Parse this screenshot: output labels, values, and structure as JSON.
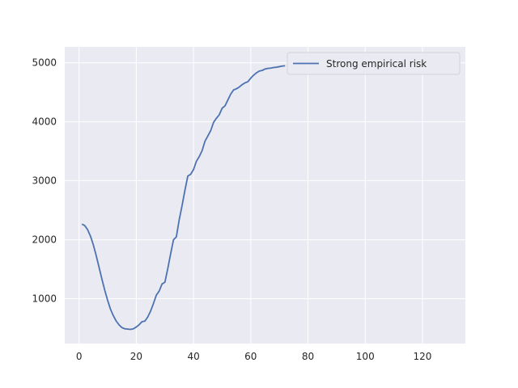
{
  "chart_data": {
    "type": "line",
    "title": "",
    "xlabel": "",
    "ylabel": "",
    "xlim": [
      -5,
      135
    ],
    "ylim": [
      240,
      5270
    ],
    "grid": true,
    "legend_position": "top-right",
    "x_ticks": [
      0,
      20,
      40,
      60,
      80,
      100,
      120
    ],
    "y_ticks": [
      1000,
      2000,
      3000,
      4000,
      5000
    ],
    "colors": {
      "background": "#eaeaf2",
      "grid": "#ffffff",
      "series": "#4c72b0"
    },
    "series": [
      {
        "name": "Strong empirical risk",
        "color": "#4c72b0",
        "x": [
          1,
          2,
          3,
          4,
          5,
          6,
          7,
          8,
          9,
          10,
          11,
          12,
          13,
          14,
          15,
          16,
          17,
          18,
          19,
          20,
          21,
          22,
          23,
          24,
          25,
          26,
          27,
          28,
          29,
          30,
          31,
          32,
          33,
          34,
          35,
          36,
          37,
          38,
          39,
          40,
          41,
          42,
          43,
          44,
          45,
          46,
          47,
          48,
          49,
          50,
          51,
          52,
          53,
          54,
          55,
          56,
          57,
          58,
          59,
          60,
          61,
          62,
          63,
          64,
          65,
          66,
          67,
          68,
          69,
          70,
          71,
          72
        ],
        "y": [
          2265,
          2240,
          2170,
          2060,
          1910,
          1730,
          1530,
          1330,
          1140,
          970,
          820,
          710,
          620,
          555,
          510,
          490,
          485,
          480,
          490,
          520,
          560,
          610,
          620,
          690,
          790,
          920,
          1060,
          1130,
          1250,
          1280,
          1510,
          1760,
          2000,
          2050,
          2340,
          2580,
          2840,
          3080,
          3110,
          3190,
          3330,
          3410,
          3510,
          3670,
          3760,
          3850,
          3990,
          4060,
          4120,
          4230,
          4270,
          4370,
          4470,
          4540,
          4560,
          4590,
          4630,
          4660,
          4680,
          4740,
          4790,
          4830,
          4860,
          4870,
          4895,
          4905,
          4910,
          4920,
          4925,
          4935,
          4945,
          4950
        ]
      }
    ]
  }
}
